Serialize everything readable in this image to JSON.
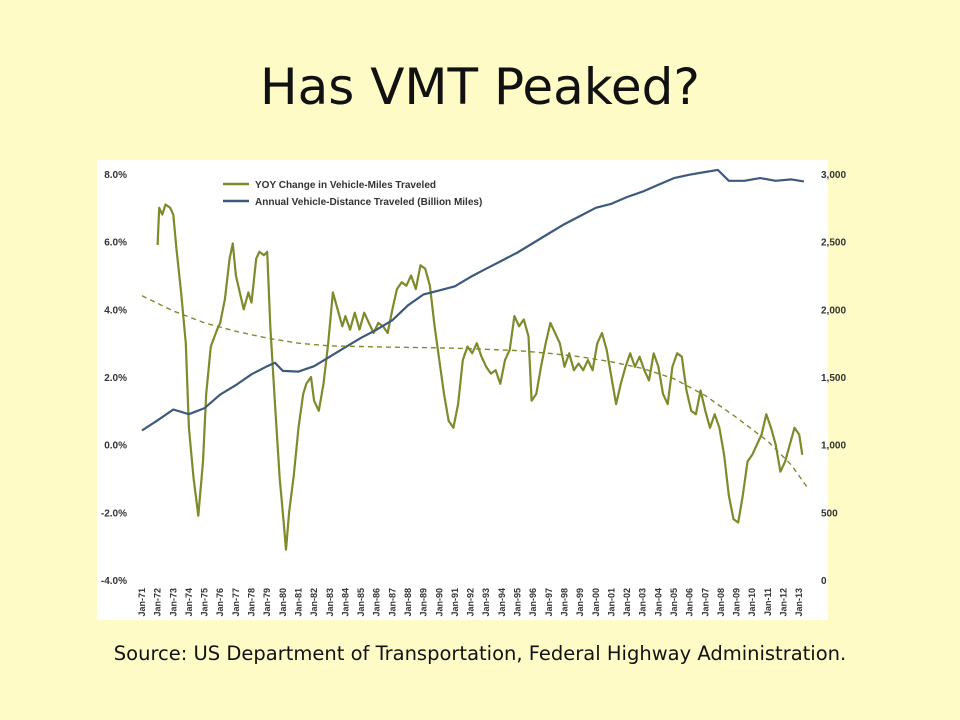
{
  "slide": {
    "title": "Has VMT Peaked?",
    "source": "Source: US Department of Transportation, Federal Highway Administration."
  },
  "chart_data": {
    "type": "line",
    "legend_placement": "top-left",
    "grid": false,
    "left_axis": {
      "ylim": [
        -4.0,
        8.0
      ],
      "ticks": [
        {
          "value": 8,
          "label": "8.0%"
        },
        {
          "value": 6,
          "label": "6.0%"
        },
        {
          "value": 4,
          "label": "4.0%"
        },
        {
          "value": 2,
          "label": "2.0%"
        },
        {
          "value": 0,
          "label": "0.0%"
        },
        {
          "value": -2,
          "label": "-2.0%"
        },
        {
          "value": -4,
          "label": "-4.0%"
        }
      ]
    },
    "right_axis": {
      "ylim": [
        0,
        3000
      ],
      "ticks": [
        {
          "value": 3000,
          "label": "3,000"
        },
        {
          "value": 2500,
          "label": "2,500"
        },
        {
          "value": 2000,
          "label": "2,000"
        },
        {
          "value": 1500,
          "label": "1,500"
        },
        {
          "value": 1000,
          "label": "1,000"
        },
        {
          "value": 500,
          "label": "500"
        },
        {
          "value": 0,
          "label": "0"
        }
      ]
    },
    "x_axis": {
      "range": [
        1971,
        2013.5
      ],
      "tick_years": [
        1971,
        1972,
        1973,
        1974,
        1975,
        1976,
        1977,
        1978,
        1979,
        1980,
        1981,
        1982,
        1983,
        1984,
        1985,
        1986,
        1987,
        1988,
        1989,
        1990,
        1991,
        1992,
        1993,
        1994,
        1995,
        1996,
        1997,
        1998,
        1999,
        2000,
        2001,
        2002,
        2003,
        2004,
        2005,
        2006,
        2007,
        2008,
        2009,
        2010,
        2011,
        2012,
        2013
      ],
      "tick_labels": [
        "Jan-71",
        "Jan-72",
        "Jan-73",
        "Jan-74",
        "Jan-75",
        "Jan-76",
        "Jan-77",
        "Jan-78",
        "Jan-79",
        "Jan-80",
        "Jan-81",
        "Jan-82",
        "Jan-83",
        "Jan-84",
        "Jan-85",
        "Jan-86",
        "Jan-87",
        "Jan-88",
        "Jan-89",
        "Jan-90",
        "Jan-91",
        "Jan-92",
        "Jan-93",
        "Jan-94",
        "Jan-95",
        "Jan-96",
        "Jan-97",
        "Jan-98",
        "Jan-99",
        "Jan-00",
        "Jan-01",
        "Jan-02",
        "Jan-03",
        "Jan-04",
        "Jan-05",
        "Jan-06",
        "Jan-07",
        "Jan-08",
        "Jan-09",
        "Jan-10",
        "Jan-11",
        "Jan-12",
        "Jan-13"
      ]
    },
    "series": [
      {
        "name": "YOY Change in Vehicle-Miles Traveled",
        "axis": "left",
        "color": "#7f8a2b",
        "style": "solid",
        "points": [
          [
            1972.0,
            5.9
          ],
          [
            1972.1,
            7.0
          ],
          [
            1972.3,
            6.8
          ],
          [
            1972.5,
            7.1
          ],
          [
            1972.8,
            7.0
          ],
          [
            1973.0,
            6.8
          ],
          [
            1973.2,
            5.8
          ],
          [
            1973.5,
            4.5
          ],
          [
            1973.8,
            3.0
          ],
          [
            1974.0,
            0.5
          ],
          [
            1974.3,
            -1.0
          ],
          [
            1974.6,
            -2.1
          ],
          [
            1974.9,
            -0.5
          ],
          [
            1975.1,
            1.5
          ],
          [
            1975.4,
            2.9
          ],
          [
            1975.8,
            3.4
          ],
          [
            1976.0,
            3.6
          ],
          [
            1976.3,
            4.3
          ],
          [
            1976.6,
            5.5
          ],
          [
            1976.8,
            5.95
          ],
          [
            1977.0,
            5.0
          ],
          [
            1977.2,
            4.6
          ],
          [
            1977.5,
            4.0
          ],
          [
            1977.8,
            4.5
          ],
          [
            1978.0,
            4.2
          ],
          [
            1978.3,
            5.5
          ],
          [
            1978.5,
            5.7
          ],
          [
            1978.8,
            5.6
          ],
          [
            1979.0,
            5.7
          ],
          [
            1979.2,
            3.5
          ],
          [
            1979.5,
            1.2
          ],
          [
            1979.8,
            -1.0
          ],
          [
            1980.0,
            -2.0
          ],
          [
            1980.2,
            -3.1
          ],
          [
            1980.4,
            -2.0
          ],
          [
            1980.7,
            -0.9
          ],
          [
            1981.0,
            0.5
          ],
          [
            1981.3,
            1.5
          ],
          [
            1981.5,
            1.8
          ],
          [
            1981.8,
            2.0
          ],
          [
            1982.0,
            1.3
          ],
          [
            1982.3,
            1.0
          ],
          [
            1982.6,
            1.8
          ],
          [
            1982.9,
            3.0
          ],
          [
            1983.2,
            4.5
          ],
          [
            1983.5,
            4.0
          ],
          [
            1983.8,
            3.5
          ],
          [
            1984.0,
            3.8
          ],
          [
            1984.3,
            3.4
          ],
          [
            1984.6,
            3.9
          ],
          [
            1984.9,
            3.4
          ],
          [
            1985.2,
            3.9
          ],
          [
            1985.5,
            3.6
          ],
          [
            1985.8,
            3.3
          ],
          [
            1986.1,
            3.6
          ],
          [
            1986.4,
            3.5
          ],
          [
            1986.7,
            3.3
          ],
          [
            1987.0,
            4.0
          ],
          [
            1987.3,
            4.6
          ],
          [
            1987.6,
            4.8
          ],
          [
            1987.9,
            4.7
          ],
          [
            1988.2,
            5.0
          ],
          [
            1988.5,
            4.6
          ],
          [
            1988.8,
            5.3
          ],
          [
            1989.1,
            5.2
          ],
          [
            1989.4,
            4.7
          ],
          [
            1989.7,
            3.5
          ],
          [
            1990.0,
            2.5
          ],
          [
            1990.3,
            1.5
          ],
          [
            1990.6,
            0.7
          ],
          [
            1990.9,
            0.5
          ],
          [
            1991.2,
            1.2
          ],
          [
            1991.5,
            2.5
          ],
          [
            1991.8,
            2.9
          ],
          [
            1992.1,
            2.7
          ],
          [
            1992.4,
            3.0
          ],
          [
            1992.7,
            2.6
          ],
          [
            1993.0,
            2.3
          ],
          [
            1993.3,
            2.1
          ],
          [
            1993.6,
            2.2
          ],
          [
            1993.9,
            1.8
          ],
          [
            1994.2,
            2.5
          ],
          [
            1994.5,
            2.8
          ],
          [
            1994.8,
            3.8
          ],
          [
            1995.1,
            3.5
          ],
          [
            1995.4,
            3.7
          ],
          [
            1995.7,
            3.2
          ],
          [
            1995.9,
            1.3
          ],
          [
            1996.2,
            1.5
          ],
          [
            1996.5,
            2.3
          ],
          [
            1996.8,
            3.0
          ],
          [
            1997.1,
            3.6
          ],
          [
            1997.4,
            3.3
          ],
          [
            1997.7,
            3.0
          ],
          [
            1998.0,
            2.3
          ],
          [
            1998.3,
            2.7
          ],
          [
            1998.6,
            2.2
          ],
          [
            1998.9,
            2.4
          ],
          [
            1999.2,
            2.2
          ],
          [
            1999.5,
            2.5
          ],
          [
            1999.8,
            2.2
          ],
          [
            2000.1,
            3.0
          ],
          [
            2000.4,
            3.3
          ],
          [
            2000.7,
            2.8
          ],
          [
            2001.0,
            2.0
          ],
          [
            2001.3,
            1.2
          ],
          [
            2001.6,
            1.8
          ],
          [
            2001.9,
            2.3
          ],
          [
            2002.2,
            2.7
          ],
          [
            2002.5,
            2.3
          ],
          [
            2002.8,
            2.6
          ],
          [
            2003.1,
            2.2
          ],
          [
            2003.4,
            1.9
          ],
          [
            2003.7,
            2.7
          ],
          [
            2004.0,
            2.3
          ],
          [
            2004.3,
            1.5
          ],
          [
            2004.6,
            1.2
          ],
          [
            2004.9,
            2.3
          ],
          [
            2005.2,
            2.7
          ],
          [
            2005.5,
            2.6
          ],
          [
            2005.8,
            1.6
          ],
          [
            2006.1,
            1.0
          ],
          [
            2006.4,
            0.9
          ],
          [
            2006.7,
            1.6
          ],
          [
            2007.0,
            1.0
          ],
          [
            2007.3,
            0.5
          ],
          [
            2007.6,
            0.9
          ],
          [
            2007.9,
            0.5
          ],
          [
            2008.2,
            -0.3
          ],
          [
            2008.5,
            -1.5
          ],
          [
            2008.8,
            -2.2
          ],
          [
            2009.1,
            -2.3
          ],
          [
            2009.4,
            -1.5
          ],
          [
            2009.7,
            -0.5
          ],
          [
            2010.0,
            -0.3
          ],
          [
            2010.3,
            0.0
          ],
          [
            2010.6,
            0.3
          ],
          [
            2010.9,
            0.9
          ],
          [
            2011.2,
            0.5
          ],
          [
            2011.5,
            0.0
          ],
          [
            2011.8,
            -0.8
          ],
          [
            2012.1,
            -0.5
          ],
          [
            2012.4,
            0.0
          ],
          [
            2012.7,
            0.5
          ],
          [
            2013.0,
            0.3
          ],
          [
            2013.2,
            -0.3
          ]
        ]
      },
      {
        "name": "Annual Vehicle-Distance Traveled (Billion Miles)",
        "axis": "right",
        "color": "#3d5a7c",
        "style": "solid",
        "points": [
          [
            1971.0,
            1105
          ],
          [
            1972.0,
            1180
          ],
          [
            1973.0,
            1260
          ],
          [
            1974.0,
            1225
          ],
          [
            1975.0,
            1270
          ],
          [
            1976.0,
            1370
          ],
          [
            1977.0,
            1440
          ],
          [
            1978.0,
            1520
          ],
          [
            1979.0,
            1580
          ],
          [
            1979.5,
            1605
          ],
          [
            1980.0,
            1545
          ],
          [
            1981.0,
            1540
          ],
          [
            1982.0,
            1580
          ],
          [
            1983.0,
            1650
          ],
          [
            1984.0,
            1720
          ],
          [
            1985.0,
            1790
          ],
          [
            1986.0,
            1850
          ],
          [
            1987.0,
            1920
          ],
          [
            1988.0,
            2030
          ],
          [
            1989.0,
            2110
          ],
          [
            1990.0,
            2140
          ],
          [
            1991.0,
            2170
          ],
          [
            1992.0,
            2240
          ],
          [
            1993.0,
            2300
          ],
          [
            1994.0,
            2360
          ],
          [
            1995.0,
            2420
          ],
          [
            1996.0,
            2490
          ],
          [
            1997.0,
            2560
          ],
          [
            1998.0,
            2630
          ],
          [
            1999.0,
            2690
          ],
          [
            2000.0,
            2750
          ],
          [
            2001.0,
            2780
          ],
          [
            2002.0,
            2830
          ],
          [
            2003.0,
            2870
          ],
          [
            2004.0,
            2920
          ],
          [
            2005.0,
            2970
          ],
          [
            2006.0,
            2995
          ],
          [
            2007.0,
            3015
          ],
          [
            2007.8,
            3030
          ],
          [
            2008.5,
            2950
          ],
          [
            2009.5,
            2950
          ],
          [
            2010.5,
            2970
          ],
          [
            2011.5,
            2950
          ],
          [
            2012.5,
            2960
          ],
          [
            2013.3,
            2945
          ]
        ]
      },
      {
        "name": "",
        "axis": "left",
        "color": "#7f8a2b",
        "style": "dashed",
        "points": [
          [
            1971.0,
            4.4
          ],
          [
            1973.0,
            3.95
          ],
          [
            1975.0,
            3.6
          ],
          [
            1977.0,
            3.35
          ],
          [
            1979.0,
            3.15
          ],
          [
            1981.0,
            3.0
          ],
          [
            1983.0,
            2.92
          ],
          [
            1985.0,
            2.9
          ],
          [
            1987.0,
            2.88
          ],
          [
            1989.0,
            2.87
          ],
          [
            1991.0,
            2.85
          ],
          [
            1993.0,
            2.82
          ],
          [
            1995.0,
            2.78
          ],
          [
            1997.0,
            2.7
          ],
          [
            1999.0,
            2.6
          ],
          [
            2001.0,
            2.45
          ],
          [
            2003.0,
            2.25
          ],
          [
            2005.0,
            1.95
          ],
          [
            2007.0,
            1.45
          ],
          [
            2009.0,
            0.8
          ],
          [
            2011.0,
            0.1
          ],
          [
            2012.5,
            -0.6
          ],
          [
            2013.5,
            -1.25
          ]
        ]
      }
    ]
  }
}
